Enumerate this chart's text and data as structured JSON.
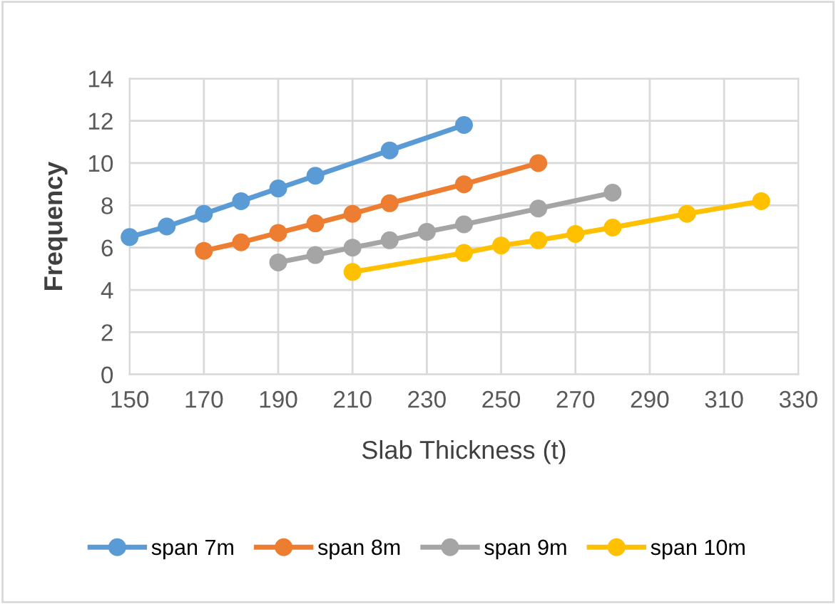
{
  "chart_data": {
    "type": "line",
    "xlabel": "Slab Thickness (t)",
    "ylabel": "Frequency",
    "xlim": [
      150,
      330
    ],
    "xticks": [
      150,
      170,
      190,
      210,
      230,
      250,
      270,
      290,
      310,
      330
    ],
    "ylim": [
      0,
      14
    ],
    "yticks": [
      0,
      2,
      4,
      6,
      8,
      10,
      12,
      14
    ],
    "grid": true,
    "legend": "bottom",
    "marker": "circle",
    "line_style": "solid",
    "series": [
      {
        "name": "span 7m",
        "color": "#5b9bd5",
        "x": [
          150,
          160,
          170,
          180,
          190,
          200,
          220,
          240
        ],
        "values": [
          6.5,
          7.0,
          7.6,
          8.2,
          8.8,
          9.4,
          10.6,
          11.8
        ]
      },
      {
        "name": "span 8m",
        "color": "#ed7d31",
        "x": [
          170,
          180,
          190,
          200,
          210,
          220,
          240,
          260
        ],
        "values": [
          5.85,
          6.25,
          6.7,
          7.15,
          7.6,
          8.1,
          9.0,
          10.0
        ]
      },
      {
        "name": "span 9m",
        "color": "#a5a5a5",
        "x": [
          190,
          200,
          210,
          220,
          230,
          240,
          260,
          280
        ],
        "values": [
          5.3,
          5.65,
          6.0,
          6.35,
          6.75,
          7.1,
          7.85,
          8.6
        ]
      },
      {
        "name": "span 10m",
        "color": "#ffc000",
        "x": [
          210,
          240,
          250,
          260,
          270,
          280,
          300,
          320
        ],
        "values": [
          4.85,
          5.75,
          6.1,
          6.35,
          6.65,
          6.95,
          7.6,
          8.2
        ]
      }
    ]
  }
}
